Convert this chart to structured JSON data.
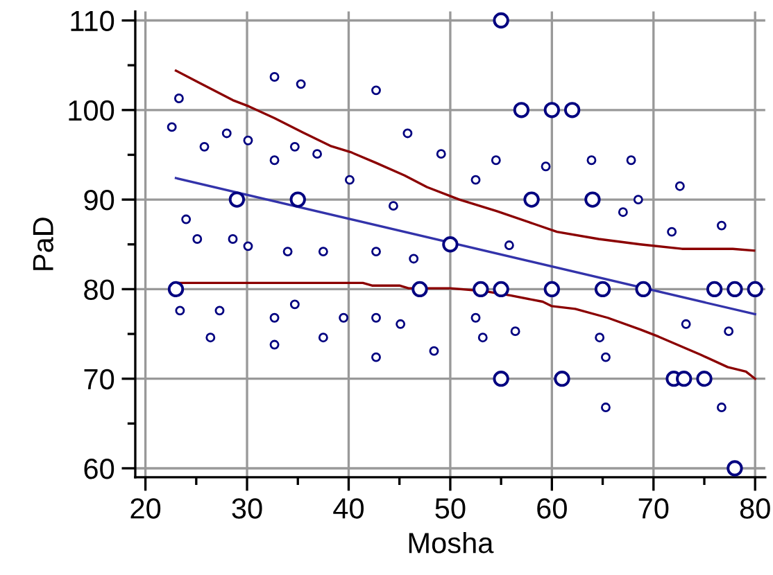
{
  "chart_data": {
    "type": "scatter",
    "xlabel": "Mosha",
    "ylabel": "PaD",
    "xlim": [
      19,
      81
    ],
    "ylim": [
      59,
      111
    ],
    "xticks": [
      20,
      {
        "value": 25,
        "label": null
      },
      30,
      {
        "value": 35,
        "label": null
      },
      40,
      {
        "value": 45,
        "label": null
      },
      50,
      {
        "value": 55,
        "label": null
      },
      60,
      {
        "value": 65,
        "label": null
      },
      70,
      {
        "value": 75,
        "label": null
      },
      80
    ],
    "yticks": [
      60,
      {
        "value": 65,
        "label": null
      },
      70,
      {
        "value": 75,
        "label": null
      },
      80,
      {
        "value": 85,
        "label": null
      },
      90,
      {
        "value": 95,
        "label": null
      },
      100,
      {
        "value": 105,
        "label": null
      },
      110
    ],
    "grid": true,
    "legend": false,
    "series": [
      {
        "type": "scatter",
        "marker": "circle",
        "color": "#000080",
        "x": [
          23.3,
          22.6,
          28.0,
          30.1,
          25.8,
          32.7,
          35.3,
          34.7,
          32.7,
          36.9,
          42.7,
          45.8,
          40.1,
          44.4,
          24.0,
          25.1,
          28.6,
          30.1,
          34.0,
          37.5,
          42.7,
          46.4,
          49.1,
          54.5,
          52.5,
          59.4,
          63.9,
          67.8,
          72.6,
          68.5,
          67.0,
          71.8,
          76.7,
          55.8,
          23.4,
          27.3,
          26.4,
          32.7,
          32.7,
          34.7,
          37.5,
          39.5,
          42.7,
          42.7,
          45.1,
          48.4,
          52.5,
          53.2,
          56.4,
          64.7,
          65.3,
          65.3,
          73.2,
          77.4,
          76.7
        ],
        "values": [
          101.3,
          98.1,
          97.4,
          96.6,
          95.9,
          103.7,
          102.9,
          95.9,
          94.4,
          95.1,
          102.2,
          97.4,
          92.2,
          89.3,
          87.8,
          85.6,
          85.6,
          84.8,
          84.2,
          84.2,
          84.2,
          83.4,
          95.1,
          94.4,
          92.2,
          93.7,
          94.4,
          94.4,
          91.5,
          90.0,
          88.6,
          86.4,
          87.1,
          84.9,
          77.6,
          77.6,
          74.6,
          76.8,
          73.8,
          78.3,
          74.6,
          76.8,
          76.8,
          72.4,
          76.1,
          73.1,
          76.8,
          74.6,
          75.3,
          74.6,
          72.4,
          66.8,
          76.1,
          75.3,
          66.8
        ]
      },
      {
        "type": "scatter",
        "marker": "circle",
        "color": "#000080",
        "x": [
          29,
          35,
          55,
          57,
          60,
          62,
          58,
          64,
          50,
          23,
          47,
          53,
          55,
          60,
          65,
          69,
          76,
          78,
          80,
          55,
          61,
          72,
          73,
          75,
          78
        ],
        "values": [
          90,
          90,
          110,
          100,
          100,
          100,
          90,
          90,
          85,
          80,
          80,
          80,
          80,
          80,
          80,
          80,
          80,
          80,
          80,
          70,
          70,
          70,
          70,
          70,
          60
        ]
      },
      {
        "type": "line",
        "marker": "none",
        "color": "#3333aa",
        "x": [
          23,
          80
        ],
        "values": [
          92.4,
          77.2
        ]
      },
      {
        "type": "line",
        "marker": "none",
        "color": "#8b0000",
        "x": [
          23.0,
          25.2,
          28.6,
          30.2,
          32.7,
          35.5,
          38.2,
          40.2,
          42.7,
          45.5,
          47.7,
          50.9,
          54.6,
          58.2,
          60.5,
          64.6,
          68.7,
          72.8,
          77.8,
          79.9
        ],
        "values": [
          104.4,
          103.1,
          101.1,
          100.4,
          99.1,
          97.5,
          96.0,
          95.3,
          94.1,
          92.7,
          91.4,
          90.0,
          88.7,
          87.3,
          86.4,
          85.6,
          85.0,
          84.5,
          84.5,
          84.3
        ]
      },
      {
        "type": "line",
        "marker": "none",
        "color": "#8b0000",
        "x": [
          23.1,
          41.4,
          42.3,
          45.0,
          45.9,
          50.0,
          53.2,
          55.9,
          59.1,
          60.0,
          62.3,
          65.5,
          68.7,
          70.5,
          74.6,
          77.3,
          79.1,
          80.0
        ],
        "values": [
          80.7,
          80.7,
          80.4,
          80.4,
          80.1,
          80.1,
          79.8,
          79.3,
          78.6,
          78.1,
          77.8,
          76.8,
          75.5,
          74.7,
          72.7,
          71.3,
          70.8,
          70.0
        ]
      }
    ]
  }
}
